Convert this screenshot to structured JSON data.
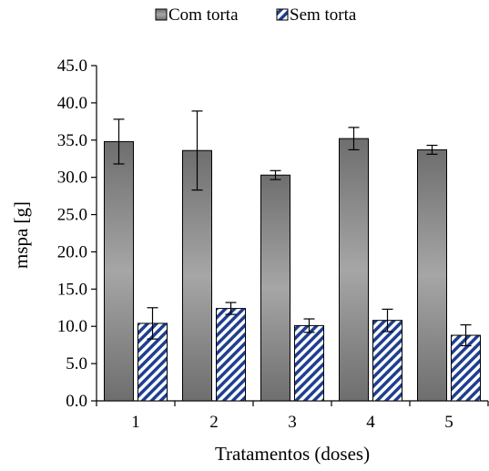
{
  "chart_data": {
    "type": "bar",
    "xlabel": "Tratamentos (doses)",
    "ylabel": "mspa [g]",
    "categories": [
      "1",
      "2",
      "3",
      "4",
      "5"
    ],
    "ylim": [
      0,
      45
    ],
    "yticks": [
      "0.0",
      "5.0",
      "10.0",
      "15.0",
      "20.0",
      "25.0",
      "30.0",
      "35.0",
      "40.0",
      "45.0"
    ],
    "legend_position": "top-center",
    "grid": false,
    "series": [
      {
        "name": "Com torta",
        "values": [
          34.8,
          33.6,
          30.3,
          35.2,
          33.7
        ],
        "errors": [
          3.0,
          5.3,
          0.6,
          1.5,
          0.6
        ],
        "fill": "gradient-gray",
        "color": "#8c8c8c"
      },
      {
        "name": "Sem torta",
        "values": [
          10.4,
          12.4,
          10.1,
          10.8,
          8.8
        ],
        "errors": [
          2.1,
          0.8,
          0.9,
          1.5,
          1.4
        ],
        "fill": "diagonal-hatch",
        "color": "#1f3f8f"
      }
    ]
  }
}
